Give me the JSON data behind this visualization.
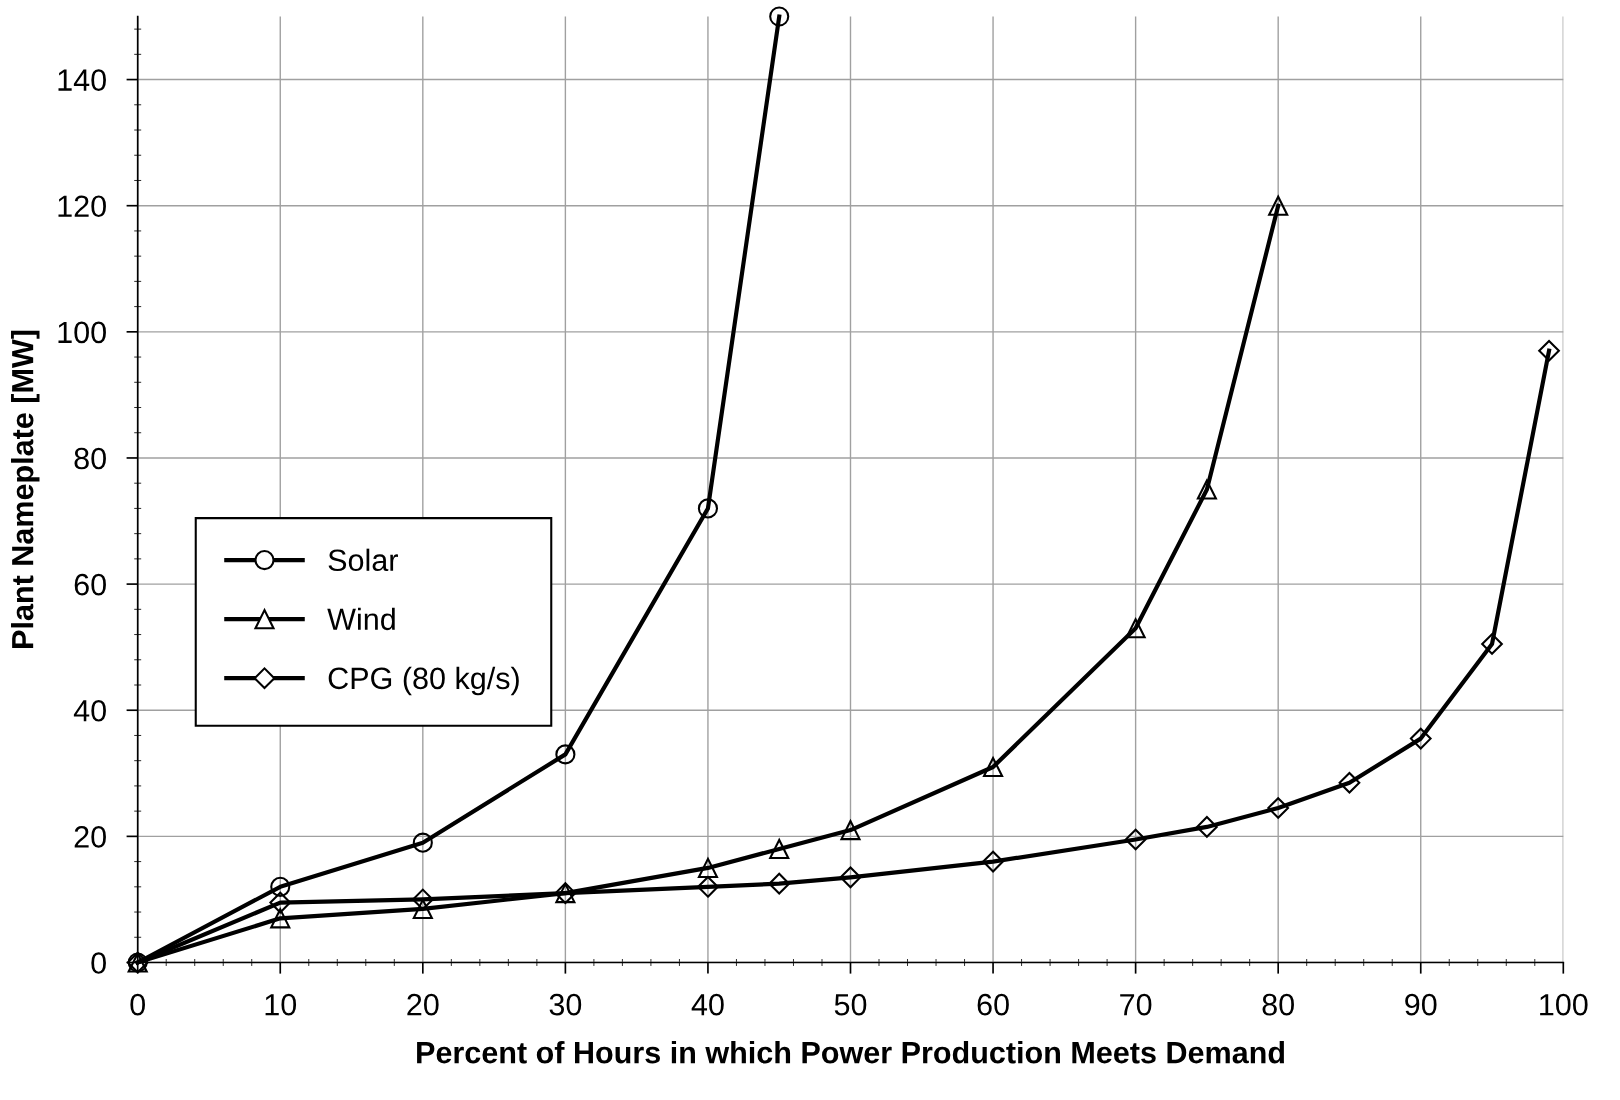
{
  "chart_data": {
    "type": "line",
    "xlabel": "Percent of Hours in which Power Production Meets Demand",
    "ylabel": "Plant Nameplate [MW]",
    "xlim": [
      0,
      100
    ],
    "xticks": [
      0,
      10,
      20,
      30,
      40,
      50,
      60,
      70,
      80,
      90,
      100
    ],
    "ylim": [
      0,
      150
    ],
    "yticks": [
      0,
      20,
      40,
      60,
      80,
      100,
      120,
      140
    ],
    "grid": true,
    "legend": "left",
    "line_style": "solid",
    "series": [
      {
        "name": "Solar",
        "color": "#000000",
        "marker": "circle",
        "x": [
          0,
          10,
          20,
          30,
          40,
          45
        ],
        "values": [
          0,
          12,
          19,
          33,
          72,
          150
        ]
      },
      {
        "name": "Wind",
        "color": "#000000",
        "marker": "triangle",
        "x": [
          0,
          10,
          20,
          30,
          40,
          45,
          50,
          60,
          70,
          75,
          80
        ],
        "values": [
          0,
          7,
          8.5,
          11,
          15,
          18,
          21,
          31,
          53,
          75,
          120
        ]
      },
      {
        "name": "CPG (80 kg/s)",
        "color": "#000000",
        "marker": "diamond",
        "x": [
          0,
          10,
          20,
          30,
          40,
          45,
          50,
          60,
          70,
          75,
          80,
          85,
          90,
          95,
          99
        ],
        "values": [
          0,
          9.5,
          10,
          11,
          12,
          12.5,
          13.5,
          16,
          19.5,
          21.5,
          24.5,
          28.5,
          35.5,
          50.5,
          97
        ]
      }
    ]
  }
}
